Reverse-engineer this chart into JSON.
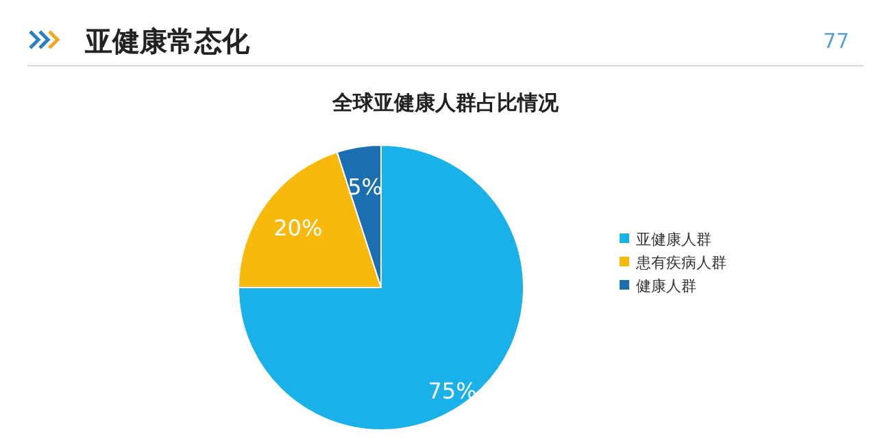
{
  "chart_data": {
    "type": "pie",
    "title": "全球亚健康人群占比情况",
    "categories": [
      "亚健康人群",
      "患有疾病人群",
      "健康人群"
    ],
    "values": [
      75,
      20,
      5
    ],
    "colors": [
      "#1ab0e8",
      "#f8b90c",
      "#1b6fb0"
    ],
    "value_labels": [
      "75%",
      "20%",
      "5%"
    ],
    "legend": "right",
    "annotations": [
      "亚健康常态化",
      "77"
    ]
  }
}
